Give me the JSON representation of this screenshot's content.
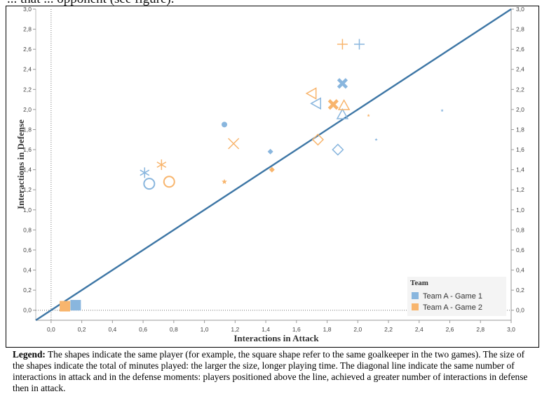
{
  "header_text": "... that ... opponent (see figure).",
  "chart_data": {
    "type": "scatter",
    "xlabel": "Interactions in Attack",
    "ylabel": "Interactions in Defense",
    "xlim": [
      -0.1,
      3.0
    ],
    "ylim": [
      -0.1,
      3.0
    ],
    "x_ticks": [
      "0,0",
      "0,2",
      "0,4",
      "0,6",
      "0,8",
      "1,0",
      "1,2",
      "1,4",
      "1,6",
      "1,8",
      "2,0",
      "2,2",
      "2,4",
      "2,6",
      "2,8",
      "3,0"
    ],
    "y_ticks": [
      "0,0",
      "0,2",
      "0,4",
      "0,6",
      "0,8",
      "1,0",
      "1,2",
      "1,4",
      "1,6",
      "1,8",
      "2,0",
      "2,2",
      "2,4",
      "2,6",
      "2,8",
      "3,0"
    ],
    "grid": false,
    "diagonal_line": {
      "from": [
        -0.1,
        -0.1
      ],
      "to": [
        3.0,
        3.0
      ],
      "color": "#3d76a5"
    },
    "legend_title": "Team",
    "legend_position": "bottom-right",
    "colors": {
      "Team A - Game 1": "#89b6de",
      "Team A - Game 2": "#f8b56d"
    },
    "series": [
      {
        "name": "Team A - Game 1",
        "points": [
          {
            "x": 0.16,
            "y": 0.05,
            "shape": "square",
            "size": "large"
          },
          {
            "x": 1.13,
            "y": 1.85,
            "shape": "circle-filled",
            "size": "small"
          },
          {
            "x": 0.64,
            "y": 1.26,
            "shape": "circle-open",
            "size": "medium"
          },
          {
            "x": 0.61,
            "y": 1.37,
            "shape": "asterisk",
            "size": "medium"
          },
          {
            "x": 1.43,
            "y": 1.58,
            "shape": "diamond-filled",
            "size": "small"
          },
          {
            "x": 1.87,
            "y": 1.6,
            "shape": "diamond-open",
            "size": "medium"
          },
          {
            "x": 1.73,
            "y": 2.06,
            "shape": "triangle-left",
            "size": "medium"
          },
          {
            "x": 1.9,
            "y": 1.95,
            "shape": "triangle-up",
            "size": "medium"
          },
          {
            "x": 1.9,
            "y": 2.26,
            "shape": "x-filled",
            "size": "medium"
          },
          {
            "x": 2.01,
            "y": 2.65,
            "shape": "plus",
            "size": "medium"
          },
          {
            "x": 2.12,
            "y": 1.7,
            "shape": "star",
            "size": "tiny"
          },
          {
            "x": 2.55,
            "y": 1.99,
            "shape": "star",
            "size": "tiny"
          }
        ]
      },
      {
        "name": "Team A - Game 2",
        "points": [
          {
            "x": 0.09,
            "y": 0.04,
            "shape": "square",
            "size": "large"
          },
          {
            "x": 0.77,
            "y": 1.28,
            "shape": "circle-open",
            "size": "medium"
          },
          {
            "x": 0.72,
            "y": 1.45,
            "shape": "asterisk",
            "size": "medium"
          },
          {
            "x": 1.13,
            "y": 1.28,
            "shape": "star",
            "size": "small"
          },
          {
            "x": 1.19,
            "y": 1.66,
            "shape": "x",
            "size": "medium"
          },
          {
            "x": 1.44,
            "y": 1.4,
            "shape": "diamond-filled",
            "size": "small"
          },
          {
            "x": 1.74,
            "y": 1.7,
            "shape": "diamond-open",
            "size": "medium"
          },
          {
            "x": 1.7,
            "y": 2.16,
            "shape": "triangle-left",
            "size": "medium"
          },
          {
            "x": 1.84,
            "y": 2.05,
            "shape": "x-filled",
            "size": "medium"
          },
          {
            "x": 1.91,
            "y": 2.04,
            "shape": "triangle-up",
            "size": "medium"
          },
          {
            "x": 1.9,
            "y": 2.65,
            "shape": "plus",
            "size": "medium"
          },
          {
            "x": 2.07,
            "y": 1.94,
            "shape": "star",
            "size": "tiny"
          }
        ]
      }
    ]
  },
  "caption": {
    "label": "Legend:",
    "text": " The shapes indicate the same player (for example, the square shape refer to the same goalkeeper in the two games). The size of the shapes indicate the total of minutes played: the larger the size, longer playing time. The diagonal line indicate the same number of interactions in attack and in the defense moments: players positioned above the line, achieved a greater number of interactions in defense then in attack."
  }
}
